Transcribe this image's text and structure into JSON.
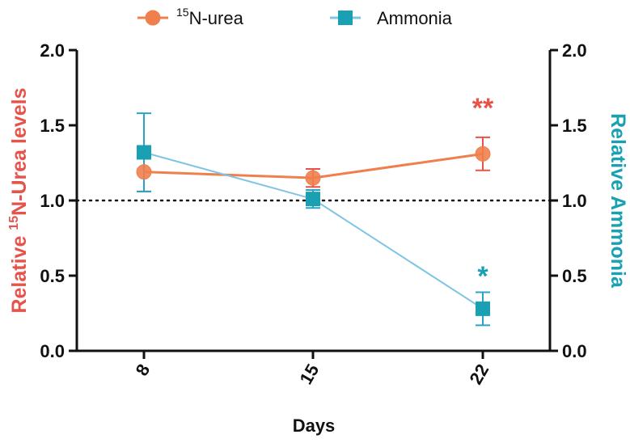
{
  "chart_data": {
    "type": "line",
    "xlabel": "Days",
    "categories": [
      "8",
      "15",
      "22"
    ],
    "ylim_left": [
      0,
      2.0
    ],
    "ylim_right": [
      0,
      2.0
    ],
    "yticks": [
      "0.0",
      "0.5",
      "1.0",
      "1.5",
      "2.0"
    ],
    "ylabel_left": {
      "pre": "Relative ",
      "sup": "15",
      "post": "N-Urea levels"
    },
    "ylabel_right": "Relative Ammonia",
    "reference_line": 1.0,
    "legend_position": "top",
    "series": [
      {
        "key": "urea",
        "legend_sup": "15",
        "legend_main": "N-urea",
        "axis": "left",
        "marker": "circle",
        "color": "#f07f4e",
        "errcolor": "#e5534b",
        "values": [
          1.19,
          1.15,
          1.31
        ],
        "err": [
          0.13,
          0.06,
          0.11
        ]
      },
      {
        "key": "ammonia",
        "legend_main": "Ammonia",
        "axis": "right",
        "marker": "square",
        "color": "#7ec5e4",
        "errcolor": "#2aa3c6",
        "markercolor": "#19a1b3",
        "values": [
          1.32,
          1.01,
          0.28
        ],
        "err": [
          0.26,
          0.06,
          0.11
        ]
      }
    ],
    "annotations": [
      {
        "category": "22",
        "text": "**",
        "value": 1.63,
        "color": "#e5534b"
      },
      {
        "category": "22",
        "text": "*",
        "value": 0.51,
        "color": "#19a1b3"
      }
    ]
  }
}
